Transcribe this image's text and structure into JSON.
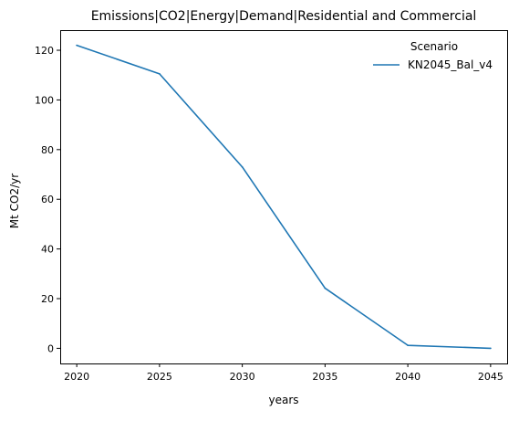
{
  "chart_data": {
    "type": "line",
    "title": "Emissions|CO2|Energy|Demand|Residential and Commercial",
    "xlabel": "years",
    "ylabel": "Mt CO2/yr",
    "x": [
      2020,
      2025,
      2030,
      2035,
      2040,
      2045
    ],
    "xlim": [
      2019,
      2046
    ],
    "ylim": [
      -6.1,
      128.1
    ],
    "xticks": [
      2020,
      2025,
      2030,
      2035,
      2040,
      2045
    ],
    "yticks": [
      0,
      20,
      40,
      60,
      80,
      100,
      120
    ],
    "grid": false,
    "legend": {
      "title": "Scenario",
      "placement": "top-right"
    },
    "series": [
      {
        "name": "KN2045_Bal_v4",
        "color": "#1f77b4",
        "values": [
          122.0,
          110.5,
          73.0,
          24.2,
          1.2,
          0.0
        ]
      }
    ]
  }
}
